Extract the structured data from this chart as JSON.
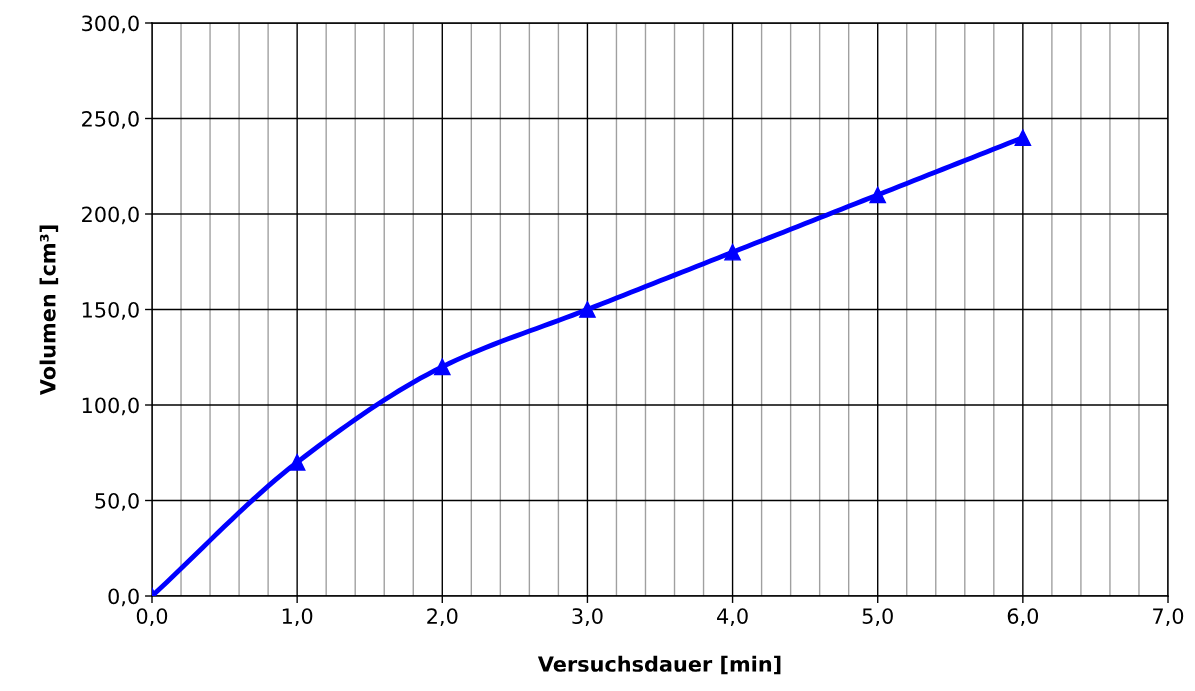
{
  "chart_data": {
    "type": "line",
    "xlabel": "Versuchsdauer [min]",
    "ylabel": "Volumen [cm³]",
    "x": [
      0,
      1,
      2,
      3,
      4,
      5,
      6
    ],
    "series": [
      {
        "color": "#0000ff",
        "values": [
          0,
          70,
          120,
          150,
          180,
          210,
          240
        ]
      }
    ],
    "marker": "triangle",
    "line_style": "solid",
    "grid": true,
    "legend": false,
    "xlim": [
      0,
      7
    ],
    "ylim": [
      0,
      300
    ],
    "xticks": [
      {
        "value": 0,
        "label": "0,0"
      },
      {
        "value": 0.2,
        "label": null
      },
      {
        "value": 0.4,
        "label": null
      },
      {
        "value": 0.6,
        "label": null
      },
      {
        "value": 0.8,
        "label": null
      },
      {
        "value": 1,
        "label": "1,0"
      },
      {
        "value": 1.2,
        "label": null
      },
      {
        "value": 1.4,
        "label": null
      },
      {
        "value": 1.6,
        "label": null
      },
      {
        "value": 1.8,
        "label": null
      },
      {
        "value": 2,
        "label": "2,0"
      },
      {
        "value": 2.2,
        "label": null
      },
      {
        "value": 2.4,
        "label": null
      },
      {
        "value": 2.6,
        "label": null
      },
      {
        "value": 2.8,
        "label": null
      },
      {
        "value": 3,
        "label": "3,0"
      },
      {
        "value": 3.2,
        "label": null
      },
      {
        "value": 3.4,
        "label": null
      },
      {
        "value": 3.6,
        "label": null
      },
      {
        "value": 3.8,
        "label": null
      },
      {
        "value": 4,
        "label": "4,0"
      },
      {
        "value": 4.2,
        "label": null
      },
      {
        "value": 4.4,
        "label": null
      },
      {
        "value": 4.6,
        "label": null
      },
      {
        "value": 4.8,
        "label": null
      },
      {
        "value": 5,
        "label": "5,0"
      },
      {
        "value": 5.2,
        "label": null
      },
      {
        "value": 5.4,
        "label": null
      },
      {
        "value": 5.6,
        "label": null
      },
      {
        "value": 5.8,
        "label": null
      },
      {
        "value": 6,
        "label": "6,0"
      },
      {
        "value": 6.2,
        "label": null
      },
      {
        "value": 6.4,
        "label": null
      },
      {
        "value": 6.6,
        "label": null
      },
      {
        "value": 6.8,
        "label": null
      },
      {
        "value": 7,
        "label": "7,0"
      }
    ],
    "yticks": [
      {
        "value": 0,
        "label": "0,0"
      },
      {
        "value": 50,
        "label": "50,0"
      },
      {
        "value": 100,
        "label": "100,0"
      },
      {
        "value": 150,
        "label": "150,0"
      },
      {
        "value": 200,
        "label": "200,0"
      },
      {
        "value": 250,
        "label": "250,0"
      },
      {
        "value": 300,
        "label": "300,0"
      }
    ]
  }
}
